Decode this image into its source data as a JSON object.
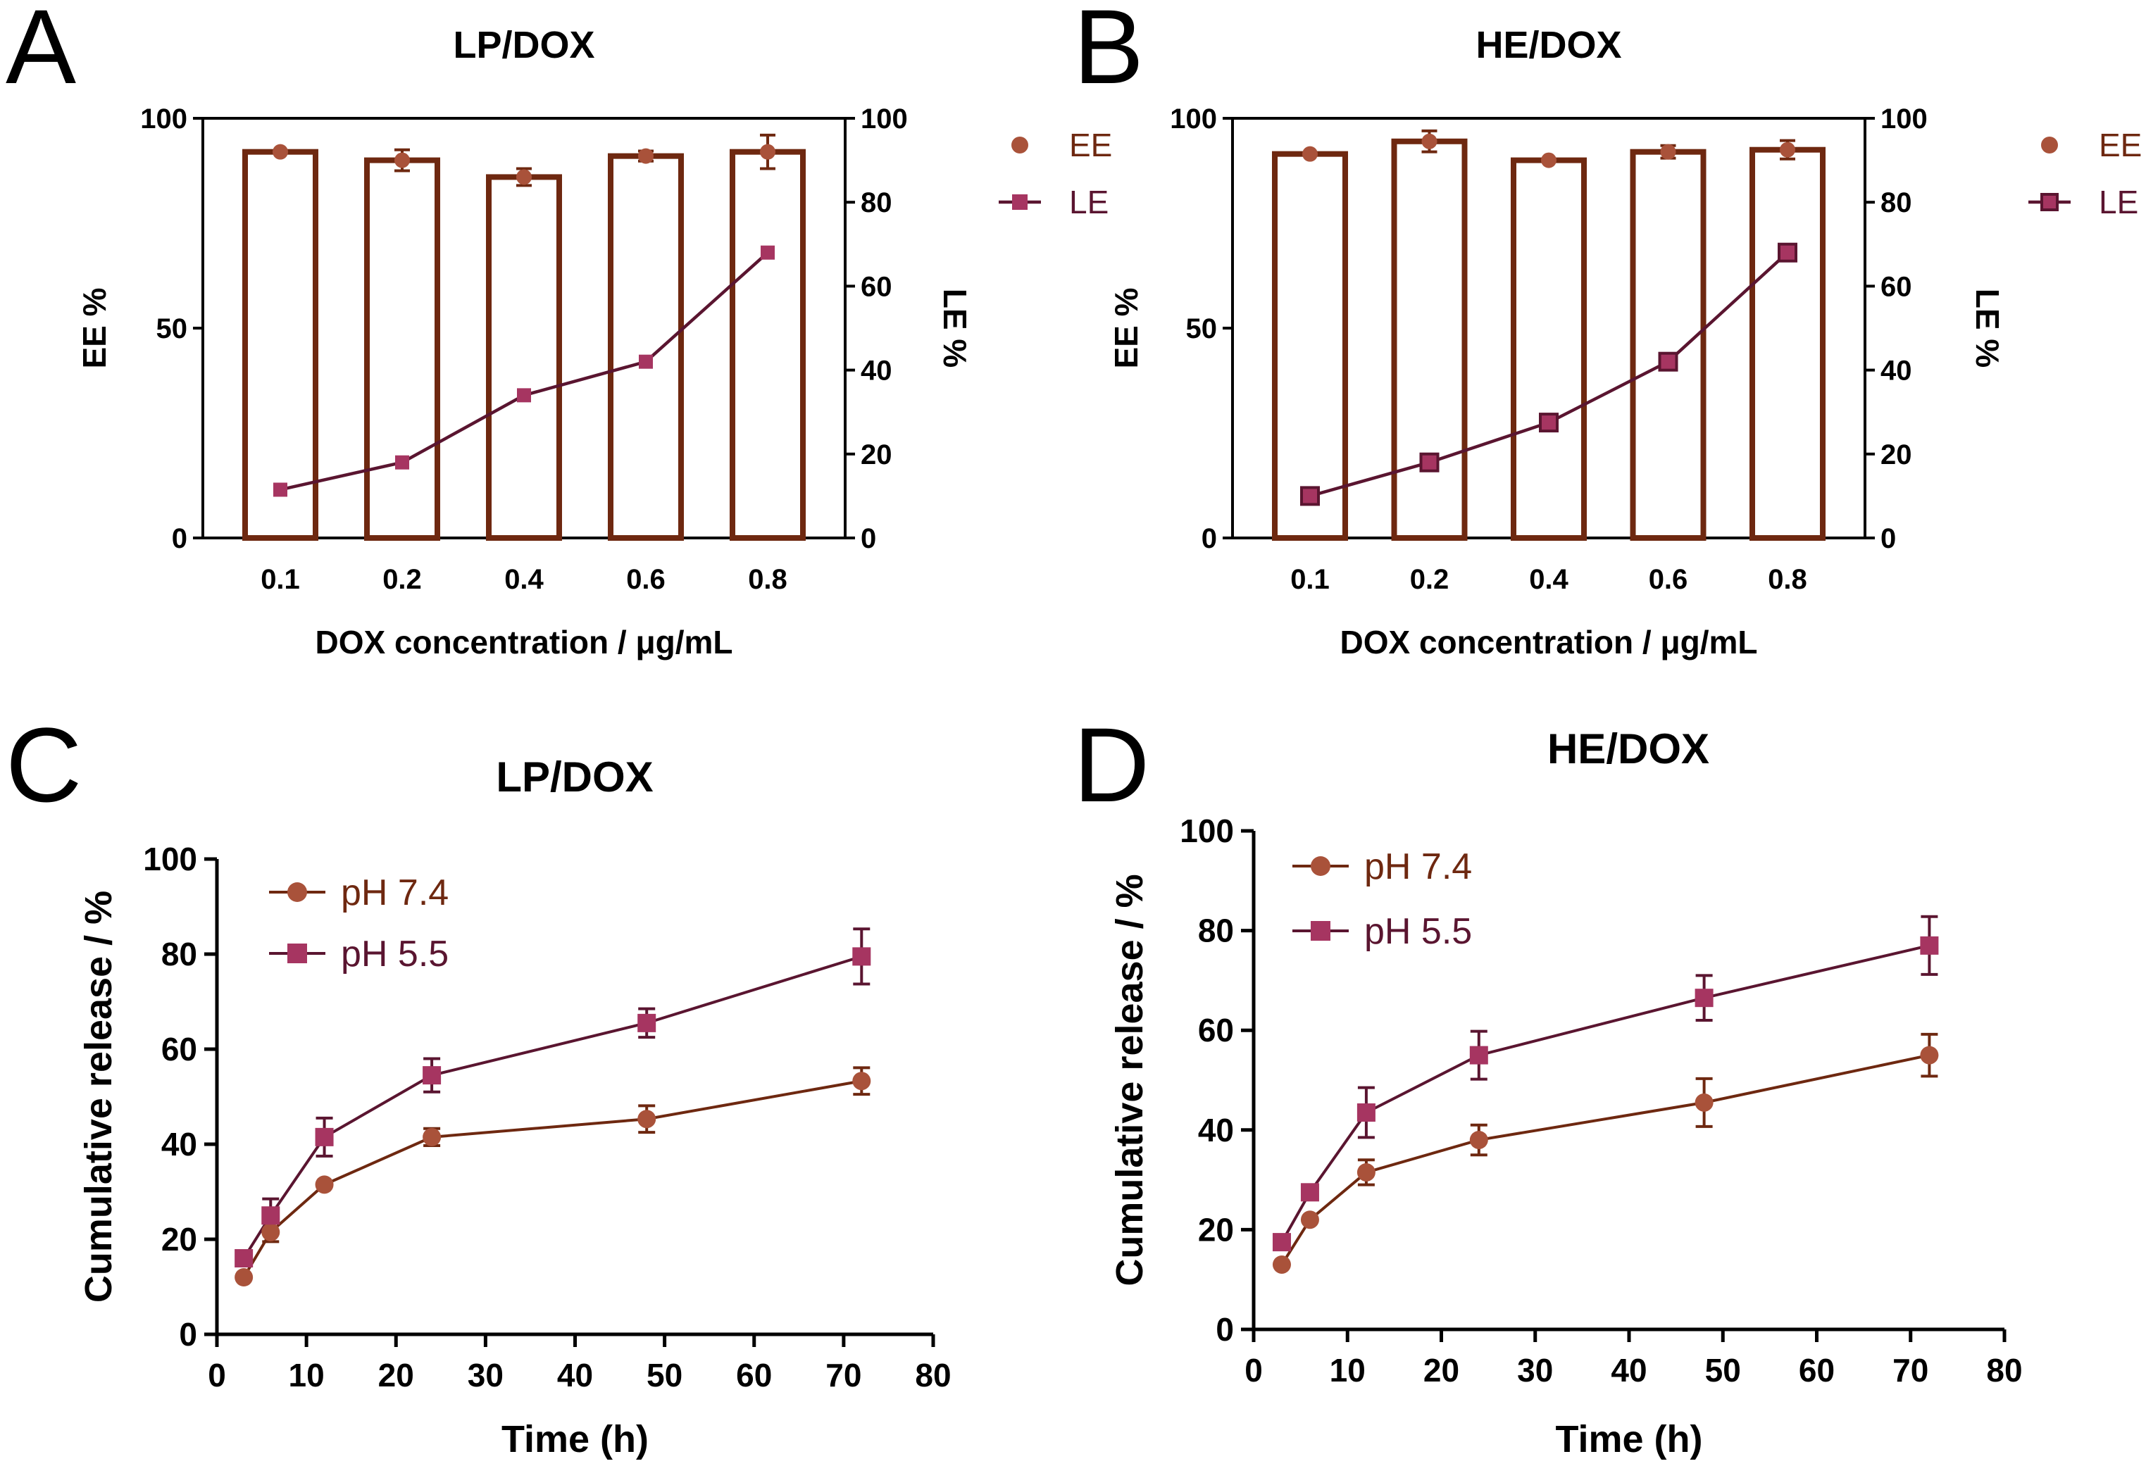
{
  "colors": {
    "ee": "#a9523a",
    "le": "#a63561",
    "le_line": "#5a1530",
    "bar": "#6e2810",
    "axis": "#000000",
    "ph74": "#a9523a",
    "ph74_line": "#6e2810",
    "ph55": "#a63561",
    "ph55_line": "#5a1530"
  },
  "chart_data": [
    {
      "panel": "A",
      "type": "bar",
      "title": "LP/DOX",
      "xlabel": "DOX concentration / μg/mL",
      "ylabel": "EE %",
      "y2label": "LE %",
      "categories": [
        "0.1",
        "0.2",
        "0.4",
        "0.6",
        "0.8"
      ],
      "ylim": [
        0,
        100
      ],
      "y2lim": [
        0,
        100
      ],
      "yticks": [
        "0",
        "50",
        "100"
      ],
      "y2ticks": [
        "0",
        "20",
        "40",
        "60",
        "80",
        "100"
      ],
      "legend": [
        "EE",
        "LE"
      ],
      "series": [
        {
          "name": "EE",
          "kind": "bar+point",
          "axis": "left",
          "values": [
            92,
            90,
            86,
            91,
            92
          ],
          "errors": [
            0.8,
            2.5,
            2.0,
            1.2,
            4.0
          ]
        },
        {
          "name": "LE",
          "kind": "line",
          "axis": "right",
          "values": [
            11.5,
            18,
            34,
            42,
            68
          ]
        }
      ]
    },
    {
      "panel": "B",
      "type": "bar",
      "title": "HE/DOX",
      "xlabel": "DOX concentration / μg/mL",
      "ylabel": "EE %",
      "y2label": "LE %",
      "categories": [
        "0.1",
        "0.2",
        "0.4",
        "0.6",
        "0.8"
      ],
      "ylim": [
        0,
        100
      ],
      "y2lim": [
        0,
        100
      ],
      "yticks": [
        "0",
        "50",
        "100"
      ],
      "y2ticks": [
        "0",
        "20",
        "40",
        "60",
        "80",
        "100"
      ],
      "legend": [
        "EE",
        "LE"
      ],
      "series": [
        {
          "name": "EE",
          "kind": "bar+point",
          "axis": "left",
          "values": [
            91.5,
            94.5,
            90,
            92,
            92.5
          ],
          "errors": [
            0.6,
            2.5,
            0.8,
            1.5,
            2.2
          ]
        },
        {
          "name": "LE",
          "kind": "line",
          "axis": "right",
          "values": [
            10,
            18,
            27.5,
            42,
            68
          ]
        }
      ]
    },
    {
      "panel": "C",
      "type": "line",
      "title": "LP/DOX",
      "xlabel": "Time (h)",
      "ylabel": "Cumulative release / %",
      "xlim": [
        0,
        80
      ],
      "ylim": [
        0,
        100
      ],
      "xticks": [
        "0",
        "10",
        "20",
        "30",
        "40",
        "50",
        "60",
        "70",
        "80"
      ],
      "yticks": [
        "0",
        "20",
        "40",
        "60",
        "80",
        "100"
      ],
      "x": [
        3,
        6,
        12,
        24,
        48,
        72
      ],
      "legend": [
        "pH 7.4",
        "pH 5.5"
      ],
      "series": [
        {
          "name": "pH 7.4",
          "values": [
            12,
            21.5,
            31.5,
            41.5,
            45.3,
            53.3
          ],
          "errors": [
            0,
            2.0,
            0.5,
            1.8,
            2.8,
            2.8
          ]
        },
        {
          "name": "pH 5.5",
          "values": [
            16,
            25,
            41.5,
            54.5,
            65.5,
            79.5
          ],
          "errors": [
            0,
            3.5,
            4.0,
            3.5,
            3.0,
            5.8
          ]
        }
      ]
    },
    {
      "panel": "D",
      "type": "line",
      "title": "HE/DOX",
      "xlabel": "Time (h)",
      "ylabel": "Cumulative release / %",
      "xlim": [
        0,
        80
      ],
      "ylim": [
        0,
        100
      ],
      "xticks": [
        "0",
        "10",
        "20",
        "30",
        "40",
        "50",
        "60",
        "70",
        "80"
      ],
      "yticks": [
        "0",
        "20",
        "40",
        "60",
        "80",
        "100"
      ],
      "x": [
        3,
        6,
        12,
        24,
        48,
        72
      ],
      "legend": [
        "pH 7.4",
        "pH 5.5"
      ],
      "series": [
        {
          "name": "pH 7.4",
          "values": [
            13,
            22,
            31.5,
            38,
            45.5,
            55
          ],
          "errors": [
            0,
            0,
            2.5,
            3.0,
            4.8,
            4.2
          ]
        },
        {
          "name": "pH 5.5",
          "values": [
            17.5,
            27.5,
            43.5,
            55,
            66.5,
            77
          ],
          "errors": [
            0,
            0,
            5.0,
            4.8,
            4.5,
            5.8
          ]
        }
      ]
    }
  ]
}
